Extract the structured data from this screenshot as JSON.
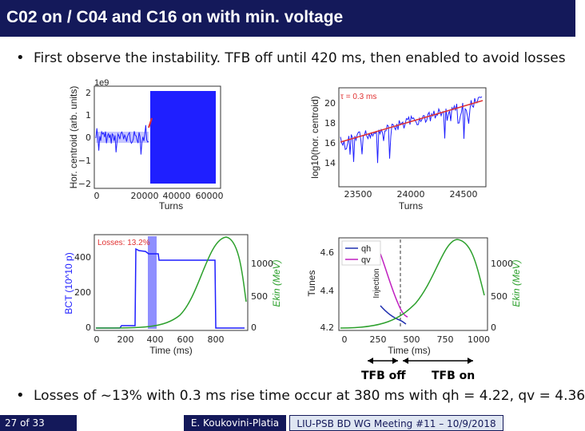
{
  "slide": {
    "title": "C02 on / C04 and C16 on with min. voltage",
    "bullet1": "First observe the instability. TFB off until 420 ms, then enabled to avoid losses",
    "bullet2": "Losses of ~13% with 0.3 ms rise time occur at 380 ms with qh = 4.22, qv = 4.36",
    "bullet_symbol": "•",
    "footer_page": "27 of 33",
    "footer_author": "E. Koukovini-Platia",
    "footer_meeting": "LIU-PSB BD WG Meeting #11 – 10/9/2018",
    "tfb_off": "TFB off",
    "tfb_on": "TFB on"
  },
  "plots": {
    "tl": {
      "ylabel": "Hor. centroid (arb. units)",
      "offset": "1e9",
      "yticks": [
        "2",
        "1",
        "0",
        "−1",
        "−2"
      ],
      "xticks": [
        "0",
        "20000",
        "40000",
        "60000"
      ],
      "xlabel": "Turns"
    },
    "tr": {
      "ylabel": "log10(hor. centroid)",
      "legend": "τ = 0.3 ms",
      "yticks": [
        "20",
        "18",
        "16",
        "14"
      ],
      "xticks": [
        "23500",
        "24000",
        "24500"
      ],
      "xlabel": "Turns"
    },
    "bl": {
      "ylabel": "BCT (10^10 p)",
      "ylabel_right": "Ekin (MeV)",
      "annotation": "Losses: 13.2%",
      "yticks": [
        "400",
        "200",
        "0"
      ],
      "yticks_right": [
        "1000",
        "500",
        "0"
      ],
      "xticks": [
        "0",
        "200",
        "400",
        "600",
        "800"
      ],
      "xlabel": "Time (ms)"
    },
    "br": {
      "ylabel": "Tunes",
      "ylabel_right": "Ekin (MeV)",
      "injection": "Injection",
      "legend": [
        "qh",
        "qv"
      ],
      "yticks": [
        "4.6",
        "4.4",
        "4.2"
      ],
      "yticks_right": [
        "1000",
        "500",
        "0"
      ],
      "xticks": [
        "0",
        "250",
        "500",
        "750",
        "1000"
      ],
      "xlabel": "Time (ms)"
    }
  },
  "colors": {
    "title_bar": "#14195a",
    "signal": "#1f1fff",
    "fit": "#e03030",
    "energy": "#2ca02c",
    "qv": "#c020c0",
    "qh": "#2030b0",
    "loss_band": "#7b7bff"
  }
}
